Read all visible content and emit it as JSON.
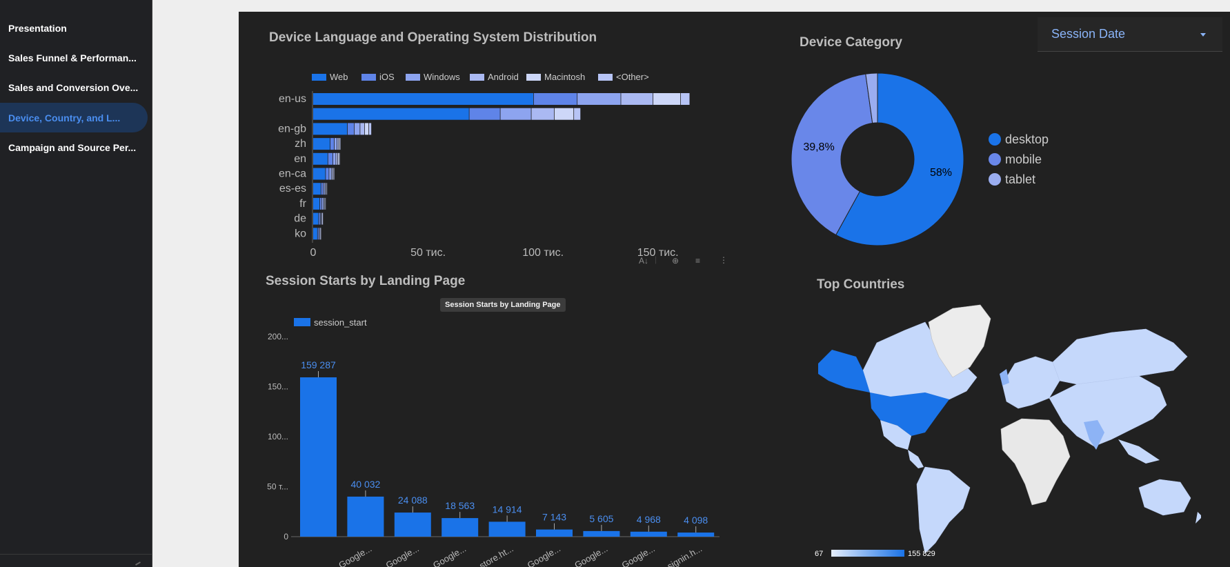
{
  "sidebar": {
    "items": [
      {
        "label": "Presentation",
        "active": false
      },
      {
        "label": "Sales Funnel & Performan...",
        "active": false
      },
      {
        "label": "Sales and Conversion Ove...",
        "active": false
      },
      {
        "label": "Device, Country, and L...",
        "active": true
      },
      {
        "label": "Campaign and Source Per...",
        "active": false
      }
    ]
  },
  "filter": {
    "session_date_label": "Session Date"
  },
  "tooltip": {
    "text": "Session Starts by Landing Page"
  },
  "colors": {
    "web": "#1a73e8",
    "ios": "#5f84e8",
    "windows": "#8da4ef",
    "android": "#aab9f2",
    "macintosh": "#cdd7f8",
    "other": "#b7c4f5",
    "desktop": "#1a73e8",
    "mobile": "#6987e9",
    "tablet": "#9aadf0"
  },
  "charts": {
    "language": {
      "title": "Device Language and Operating System Distribution",
      "legend": [
        "Web",
        "iOS",
        "Windows",
        "Android",
        "Macintosh",
        "<Other>"
      ],
      "x_ticks": [
        "0",
        "50 тис.",
        "100 тис.",
        "150 тис."
      ]
    },
    "device_category": {
      "title": "Device Category",
      "legend": [
        "desktop",
        "mobile",
        "tablet"
      ],
      "labels": [
        "58%",
        "39,8%"
      ]
    },
    "landing": {
      "title": "Session Starts by Landing Page",
      "legend": "session_start",
      "y_ticks": [
        "200...",
        "150...",
        "100...",
        "50 т...",
        "0"
      ]
    },
    "countries": {
      "title": "Top Countries",
      "scale_min": "67",
      "scale_max": "155 829"
    }
  },
  "chart_data": [
    {
      "type": "bar",
      "orientation": "horizontal",
      "stacked": true,
      "title": "Device Language and Operating System Distribution",
      "categories": [
        "en-us",
        "",
        "en-gb",
        "zh",
        "en",
        "en-ca",
        "es-es",
        "fr",
        "de",
        "ko"
      ],
      "series": [
        {
          "name": "Web",
          "values": [
            96000,
            68000,
            15000,
            7500,
            6500,
            5500,
            3500,
            3000,
            2500,
            2000
          ]
        },
        {
          "name": "iOS",
          "values": [
            19000,
            13500,
            3000,
            1800,
            2200,
            1500,
            1000,
            800,
            700,
            600
          ]
        },
        {
          "name": "Windows",
          "values": [
            19000,
            13500,
            2500,
            1200,
            1300,
            1000,
            700,
            800,
            400,
            300
          ]
        },
        {
          "name": "Android",
          "values": [
            14000,
            10000,
            2000,
            700,
            800,
            600,
            400,
            400,
            300,
            200
          ]
        },
        {
          "name": "Macintosh",
          "values": [
            12000,
            8500,
            1800,
            600,
            700,
            500,
            300,
            300,
            200,
            150
          ]
        },
        {
          "name": "<Other>",
          "values": [
            4000,
            3000,
            1200,
            300,
            300,
            200,
            150,
            150,
            100,
            100
          ]
        }
      ],
      "xlim": [
        0,
        160000
      ]
    },
    {
      "type": "pie",
      "title": "Device Category",
      "categories": [
        "desktop",
        "mobile",
        "tablet"
      ],
      "values": [
        58,
        39.8,
        2.2
      ]
    },
    {
      "type": "bar",
      "title": "Session Starts by Landing Page",
      "categories": [
        "",
        "Google...",
        "Google...",
        "Google...",
        "store.ht...",
        "Google...",
        "Google...",
        "Google...",
        "signin.h..."
      ],
      "series": [
        {
          "name": "session_start",
          "values": [
            159287,
            40032,
            24088,
            18563,
            14914,
            7143,
            5605,
            4968,
            4098
          ]
        }
      ],
      "data_labels": [
        "159 287",
        "40 032",
        "24 088",
        "18 563",
        "14 914",
        "7 143",
        "5 605",
        "4 968",
        "4 098"
      ],
      "ylim": [
        0,
        200000
      ]
    }
  ]
}
